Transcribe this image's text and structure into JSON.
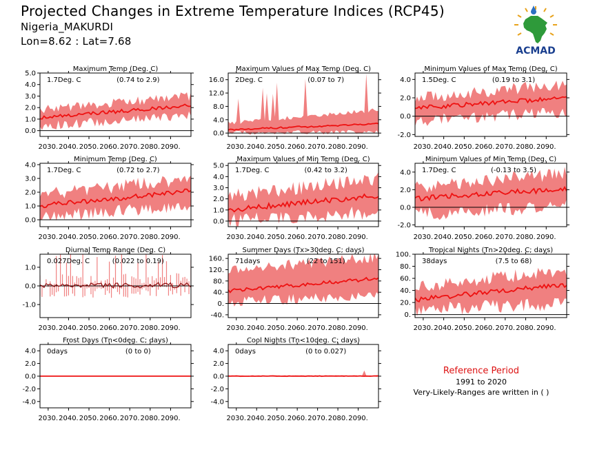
{
  "header": {
    "title": "Projected Changes in Extreme Temperature Indices (RCP45)",
    "location": "Nigeria_MAKURDI",
    "coords": "Lon=8.62 : Lat=7.68"
  },
  "logo": {
    "text": "ACMAD",
    "icon": "africa-map-logo-icon",
    "colors": {
      "land": "#2e9a3a",
      "text": "#1a3f8f",
      "rays": "#e8a21a",
      "drop": "#2b6fc2"
    }
  },
  "reference": {
    "title": "Reference Period",
    "period": "1991 to 2020",
    "note": "Very-Likely-Ranges are written in ( )"
  },
  "colors": {
    "band": "#f08080",
    "line": "#ee1111",
    "zero": "#000000",
    "dtr_line": "#111111"
  },
  "chart_data": [
    {
      "id": "txx-mean",
      "type": "area",
      "title": "Maximum Temp (Deg. C)",
      "mean_label": "1.7Deg. C",
      "range_label": "(0.74 to 2.9)",
      "x_ticks": [
        "2030.",
        "2040.",
        "2050.",
        "2060.",
        "2070.",
        "2080.",
        "2090."
      ],
      "xlim": [
        2026,
        2100
      ],
      "ylim": [
        -0.5,
        5.0
      ],
      "y_ticks": [
        0.0,
        1.0,
        2.0,
        3.0,
        4.0,
        5.0
      ],
      "y_tick_labels": [
        "0.0",
        "1.0",
        "2.0",
        "3.0",
        "4.0",
        "5.0"
      ],
      "mean_start": 1.1,
      "mean_end": 2.2,
      "lower_start": 0.4,
      "lower_end": 1.3,
      "upper_start": 1.8,
      "upper_end": 3.0,
      "noise": 0.25,
      "spikes": 0
    },
    {
      "id": "max-tmax",
      "type": "area",
      "title": "Maximum Values of Max Temp (Deg. C)",
      "mean_label": "2Deg. C",
      "range_label": "(0.07 to 7)",
      "x_ticks": [
        "2030.",
        "2040.",
        "2050.",
        "2060.",
        "2070.",
        "2080.",
        "2090."
      ],
      "xlim": [
        2026,
        2100
      ],
      "ylim": [
        -1.0,
        18.0
      ],
      "y_ticks": [
        0.0,
        4.0,
        8.0,
        12.0,
        16.0
      ],
      "y_tick_labels": [
        "0.0",
        "4.0",
        "8.0",
        "12.0",
        "16.0"
      ],
      "mean_start": 1.0,
      "mean_end": 2.8,
      "lower_start": 0.1,
      "lower_end": 0.3,
      "upper_start": 3.0,
      "upper_end": 7.0,
      "noise": 0.4,
      "spikes": 10
    },
    {
      "id": "min-tmax",
      "type": "area",
      "title": "Minimum Values of Max Temp (Deg. C)",
      "mean_label": "1.5Deg. C",
      "range_label": "(0.19 to 3.1)",
      "x_ticks": [
        "2030.",
        "2040.",
        "2050.",
        "2060.",
        "2070.",
        "2080.",
        "2090."
      ],
      "xlim": [
        2026,
        2100
      ],
      "ylim": [
        -2.2,
        4.7
      ],
      "y_ticks": [
        -2.0,
        0.0,
        2.0,
        4.0
      ],
      "y_tick_labels": [
        "-2.0",
        "0.0",
        "2.0",
        "4.0"
      ],
      "mean_start": 0.9,
      "mean_end": 2.0,
      "lower_start": -0.5,
      "lower_end": 0.5,
      "upper_start": 2.0,
      "upper_end": 3.5,
      "noise": 0.4,
      "spikes": 0
    },
    {
      "id": "tn-mean",
      "type": "area",
      "title": "Minimum Temp (Deg. C)",
      "mean_label": "1.7Deg. C",
      "range_label": "(0.72 to 2.7)",
      "x_ticks": [
        "2030.",
        "2040.",
        "2050.",
        "2060.",
        "2070.",
        "2080.",
        "2090."
      ],
      "xlim": [
        2026,
        2100
      ],
      "ylim": [
        -0.5,
        4.1
      ],
      "y_ticks": [
        0.0,
        1.0,
        2.0,
        3.0,
        4.0
      ],
      "y_tick_labels": [
        "0.0",
        "1.0",
        "2.0",
        "3.0",
        "4.0"
      ],
      "mean_start": 1.0,
      "mean_end": 2.1,
      "lower_start": 0.2,
      "lower_end": 1.1,
      "upper_start": 1.8,
      "upper_end": 3.0,
      "noise": 0.3,
      "spikes": 0
    },
    {
      "id": "max-tmin",
      "type": "area",
      "title": "Maximum Values of Min Temp (Deg. C)",
      "mean_label": "1.7Deg. C",
      "range_label": "(0.42 to 3.2)",
      "x_ticks": [
        "2030.",
        "2040.",
        "2050.",
        "2060.",
        "2070.",
        "2080.",
        "2090."
      ],
      "xlim": [
        2026,
        2100
      ],
      "ylim": [
        -0.5,
        5.2
      ],
      "y_ticks": [
        0.0,
        1.0,
        2.0,
        3.0,
        4.0,
        5.0
      ],
      "y_tick_labels": [
        "0.0",
        "1.0",
        "2.0",
        "3.0",
        "4.0",
        "5.0"
      ],
      "mean_start": 1.0,
      "mean_end": 2.3,
      "lower_start": 0.1,
      "lower_end": 0.8,
      "upper_start": 2.2,
      "upper_end": 3.8,
      "noise": 0.4,
      "spikes": 0
    },
    {
      "id": "min-tmin",
      "type": "area",
      "title": "Minimum Values of Min Temp (Deg. C)",
      "mean_label": "1.7Deg. C",
      "range_label": "(-0.13 to 3.5)",
      "x_ticks": [
        "2030.",
        "2040.",
        "2050.",
        "2060.",
        "2070.",
        "2080.",
        "2090."
      ],
      "xlim": [
        2026,
        2100
      ],
      "ylim": [
        -2.2,
        5.0
      ],
      "y_ticks": [
        -2.0,
        0.0,
        2.0,
        4.0
      ],
      "y_tick_labels": [
        "-2.0",
        "0.0",
        "2.0",
        "4.0"
      ],
      "mean_start": 1.0,
      "mean_end": 2.1,
      "lower_start": -0.8,
      "lower_end": 0.2,
      "upper_start": 2.2,
      "upper_end": 3.9,
      "noise": 0.5,
      "spikes": 0
    },
    {
      "id": "dtr",
      "type": "line",
      "title": "Diurnal Temp Range (Deg. C)",
      "mean_label": "0.027Deg. C",
      "range_label": "(0.022 to 0.19)",
      "x_ticks": [
        "2030.",
        "2040.",
        "2050.",
        "2060.",
        "2070.",
        "2080.",
        "2090."
      ],
      "xlim": [
        2026,
        2100
      ],
      "ylim": [
        -1.7,
        1.7
      ],
      "y_ticks": [
        -1.0,
        0.0,
        1.0
      ],
      "y_tick_labels": [
        "-1.0",
        "0.0",
        "1.0"
      ],
      "mean_start": 0.0,
      "mean_end": 0.05,
      "lower_start": -0.25,
      "lower_end": -0.3,
      "upper_start": 0.2,
      "upper_end": 0.3,
      "noise": 0.25,
      "spikes": 14,
      "thin": true
    },
    {
      "id": "su",
      "type": "area",
      "title": "Summer Days (Tx>30deg. C; days)",
      "mean_label": "71days",
      "range_label": "(22 to 151)",
      "x_ticks": [
        "2030.",
        "2040.",
        "2050.",
        "2060.",
        "2070.",
        "2080.",
        "2090."
      ],
      "xlim": [
        2026,
        2100
      ],
      "ylim": [
        -50,
        175
      ],
      "y_ticks": [
        -40,
        0,
        40,
        80,
        120,
        160
      ],
      "y_tick_labels": [
        "-40.",
        "0.",
        "40.",
        "80.",
        "120.",
        "160."
      ],
      "mean_start": 45,
      "mean_end": 90,
      "lower_start": 5,
      "lower_end": 30,
      "upper_start": 120,
      "upper_end": 165,
      "noise": 12,
      "spikes": 0
    },
    {
      "id": "tr",
      "type": "area",
      "title": "Tropical Nights (Tn>20deg. C; days)",
      "mean_label": "38days",
      "range_label": "(7.5 to 68)",
      "x_ticks": [
        "2030.",
        "2040.",
        "2050.",
        "2060.",
        "2070.",
        "2080.",
        "2090."
      ],
      "xlim": [
        2026,
        2100
      ],
      "ylim": [
        -5,
        100
      ],
      "y_ticks": [
        0,
        20,
        40,
        60,
        80,
        100
      ],
      "y_tick_labels": [
        "0.",
        "20.",
        "40.",
        "60.",
        "80.",
        "100."
      ],
      "mean_start": 25,
      "mean_end": 50,
      "lower_start": 8,
      "lower_end": 18,
      "upper_start": 45,
      "upper_end": 75,
      "noise": 7,
      "spikes": 0
    },
    {
      "id": "fd",
      "type": "area",
      "title": "Frost Days (Tn<0deg. C; days)",
      "mean_label": "0days",
      "range_label": "(0 to 0)",
      "x_ticks": [
        "2030.",
        "2040.",
        "2050.",
        "2060.",
        "2070.",
        "2080.",
        "2090."
      ],
      "xlim": [
        2026,
        2100
      ],
      "ylim": [
        -5.0,
        5.0
      ],
      "y_ticks": [
        -4.0,
        -2.0,
        0.0,
        2.0,
        4.0
      ],
      "y_tick_labels": [
        "-4.0",
        "-2.0",
        "0.0",
        "2.0",
        "4.0"
      ],
      "mean_start": 0,
      "mean_end": 0,
      "lower_start": 0,
      "lower_end": 0,
      "upper_start": 0,
      "upper_end": 0,
      "noise": 0,
      "spikes": 0
    },
    {
      "id": "cn",
      "type": "area",
      "title": "Cool Nights (Tn<10deg. C; days)",
      "mean_label": "0days",
      "range_label": "(0 to 0.027)",
      "x_ticks": [
        "2030.",
        "2040.",
        "2050.",
        "2060.",
        "2070.",
        "2080.",
        "2090."
      ],
      "xlim": [
        2026,
        2100
      ],
      "ylim": [
        -5.0,
        5.0
      ],
      "y_ticks": [
        -4.0,
        -2.0,
        0.0,
        2.0,
        4.0
      ],
      "y_tick_labels": [
        "-4.0",
        "-2.0",
        "0.0",
        "2.0",
        "4.0"
      ],
      "mean_start": 0,
      "mean_end": 0.02,
      "lower_start": 0,
      "lower_end": 0,
      "upper_start": 0.05,
      "upper_end": 0.1,
      "noise": 0.05,
      "spikes": 0,
      "peak_year": 2093,
      "peak_value": 0.9
    }
  ]
}
